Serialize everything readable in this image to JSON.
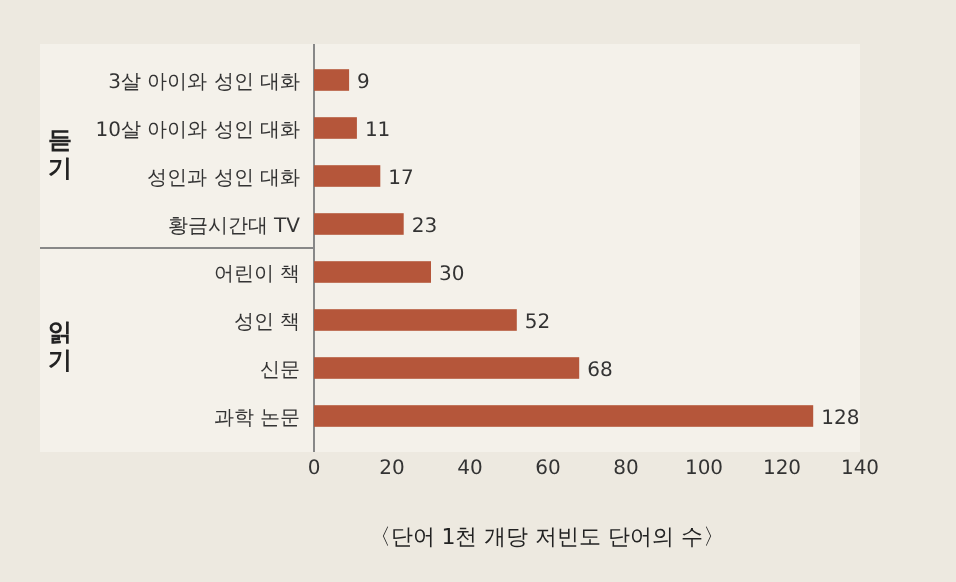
{
  "chart_data": {
    "type": "bar",
    "orientation": "horizontal",
    "title": "〈단어 1천 개당 저빈도 단어의 수〉",
    "categories": [
      "3살 아이와 성인 대화",
      "10살 아이와 성인 대화",
      "성인과 성인 대화",
      "황금시간대 TV",
      "어린이 책",
      "성인 책",
      "신문",
      "과학 논문"
    ],
    "values": [
      9,
      11,
      17,
      23,
      30,
      52,
      68,
      128
    ],
    "color": "#b5563a",
    "xlim": [
      0,
      140
    ],
    "xticks": [
      0,
      20,
      40,
      60,
      80,
      100,
      120,
      140
    ],
    "data_labels": true,
    "annotations": [
      "듣기",
      "읽기"
    ]
  }
}
